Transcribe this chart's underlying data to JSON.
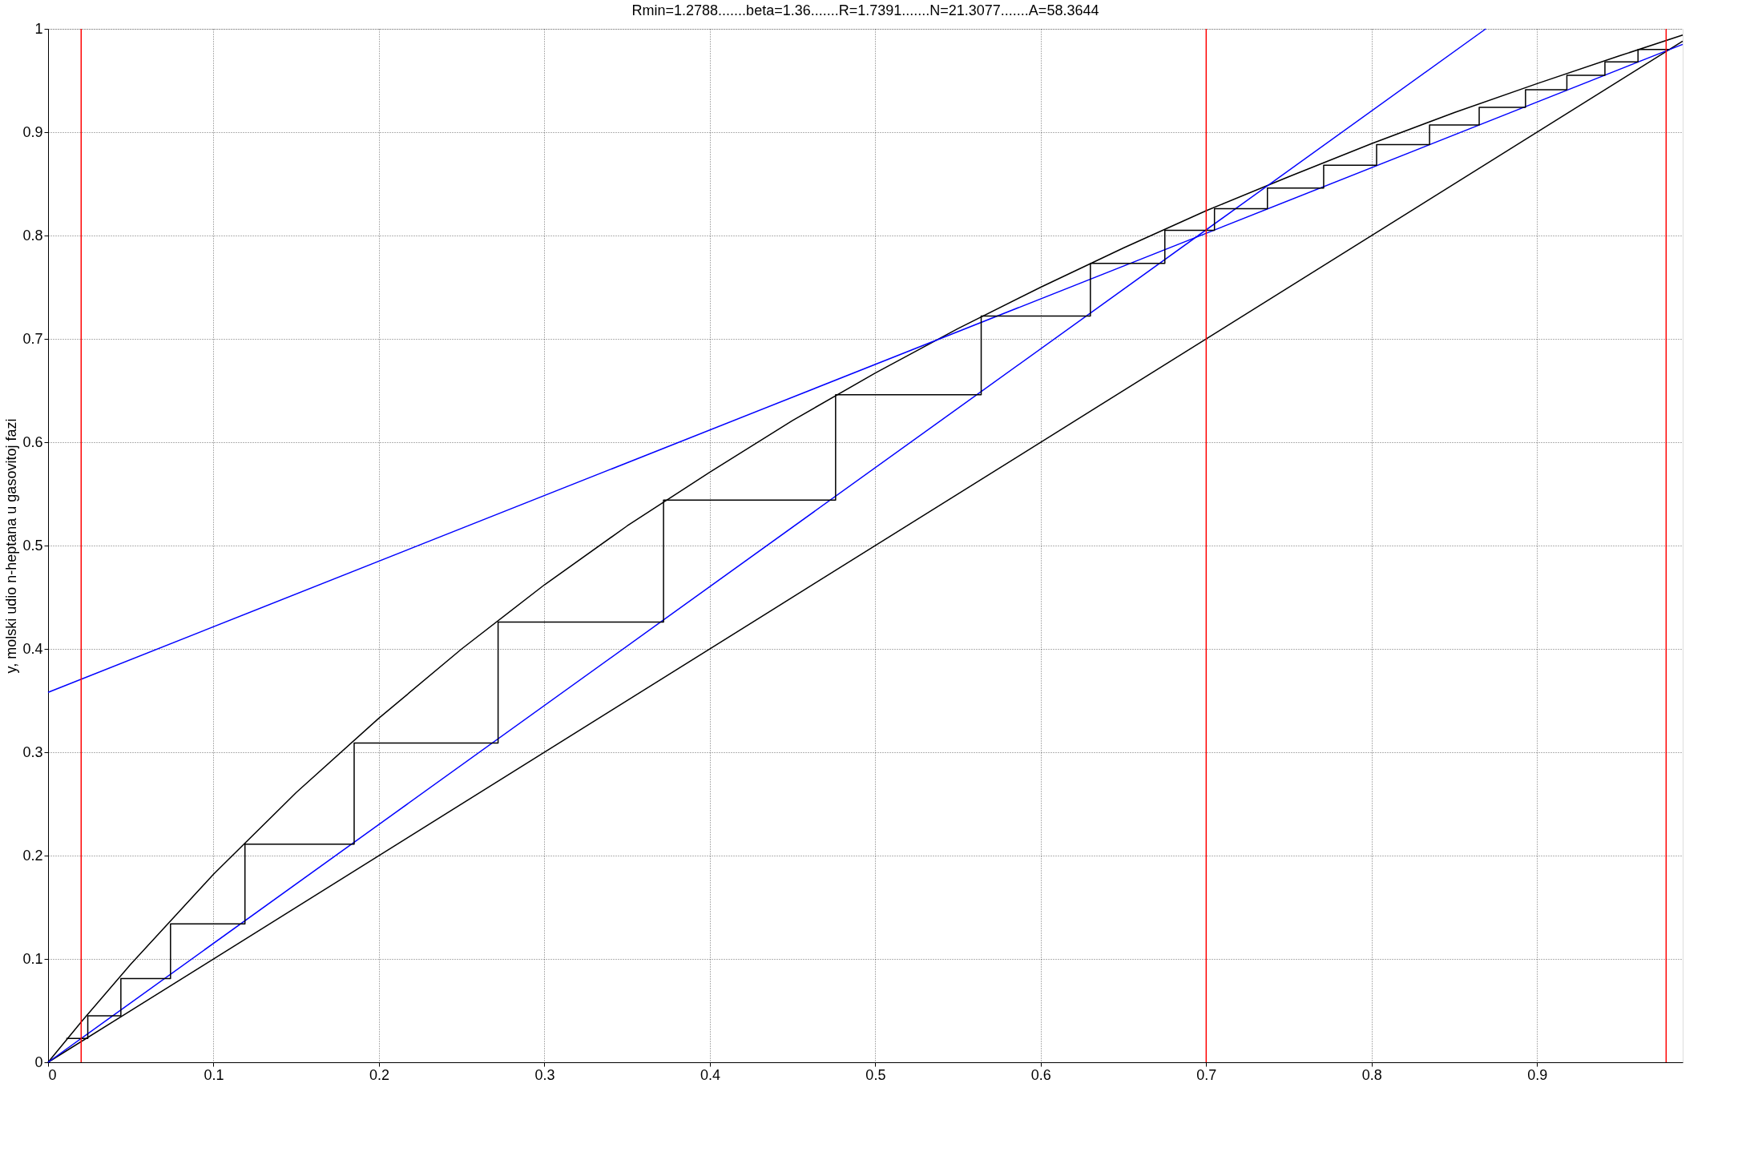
{
  "chart_data": {
    "type": "line",
    "title": "Rmin=1.2788.......beta=1.36.......R=1.7391.......N=21.3077.......A=58.3644",
    "ylabel": "y, molski udio n-heptana u gasovitoj fazi",
    "xlim": [
      0,
      0.988
    ],
    "ylim": [
      0,
      1
    ],
    "xticks": [
      0,
      0.1,
      0.2,
      0.3,
      0.4,
      0.5,
      0.6,
      0.7,
      0.8,
      0.9
    ],
    "yticks": [
      0,
      0.1,
      0.2,
      0.3,
      0.4,
      0.5,
      0.6,
      0.7,
      0.8,
      0.9,
      1
    ],
    "grid": true,
    "legend": false,
    "line_style": "solid",
    "marker": "none",
    "series": [
      {
        "color": "#000000",
        "x": [
          0,
          0.02,
          0.05,
          0.1,
          0.15,
          0.2,
          0.25,
          0.3,
          0.35,
          0.4,
          0.45,
          0.5,
          0.55,
          0.6,
          0.65,
          0.7,
          0.75,
          0.8,
          0.85,
          0.9,
          0.95,
          0.988
        ],
        "values": [
          0,
          0.039,
          0.095,
          0.182,
          0.261,
          0.333,
          0.4,
          0.462,
          0.519,
          0.571,
          0.621,
          0.667,
          0.71,
          0.75,
          0.788,
          0.824,
          0.857,
          0.889,
          0.919,
          0.947,
          0.974,
          0.994
        ]
      },
      {
        "color": "#000000",
        "x": [
          0,
          0.988
        ],
        "values": [
          0,
          0.988
        ]
      },
      {
        "color": "#0000ff",
        "x": [
          0,
          0.988
        ],
        "values": [
          0.358,
          0.985
        ]
      },
      {
        "color": "#0000ff",
        "x": [
          0,
          0.869
        ],
        "values": [
          0,
          1
        ]
      },
      {
        "color": "#000000",
        "x": [
          0.98,
          0.961,
          0.961,
          0.941,
          0.941,
          0.918,
          0.918,
          0.893,
          0.893,
          0.865,
          0.865,
          0.835,
          0.835,
          0.803,
          0.803,
          0.771,
          0.771,
          0.737,
          0.737,
          0.705,
          0.705,
          0.675,
          0.675,
          0.63,
          0.63,
          0.564,
          0.564,
          0.476,
          0.476,
          0.372,
          0.372,
          0.272,
          0.272,
          0.185,
          0.185,
          0.119,
          0.119,
          0.074,
          0.074,
          0.044,
          0.044,
          0.024,
          0.024,
          0.011
        ],
        "values": [
          0.98,
          0.98,
          0.968,
          0.968,
          0.955,
          0.955,
          0.941,
          0.941,
          0.924,
          0.924,
          0.907,
          0.907,
          0.888,
          0.888,
          0.868,
          0.868,
          0.846,
          0.846,
          0.826,
          0.826,
          0.805,
          0.805,
          0.773,
          0.773,
          0.722,
          0.722,
          0.646,
          0.646,
          0.544,
          0.544,
          0.426,
          0.426,
          0.309,
          0.309,
          0.211,
          0.211,
          0.134,
          0.134,
          0.081,
          0.081,
          0.045,
          0.045,
          0.023,
          0.023
        ]
      }
    ],
    "ref_lines": [
      {
        "axis": "x",
        "value": 0.02,
        "color": "#ff0000"
      },
      {
        "axis": "x",
        "value": 0.7,
        "color": "#ff0000"
      },
      {
        "axis": "x",
        "value": 0.978,
        "color": "#ff0000"
      }
    ]
  }
}
